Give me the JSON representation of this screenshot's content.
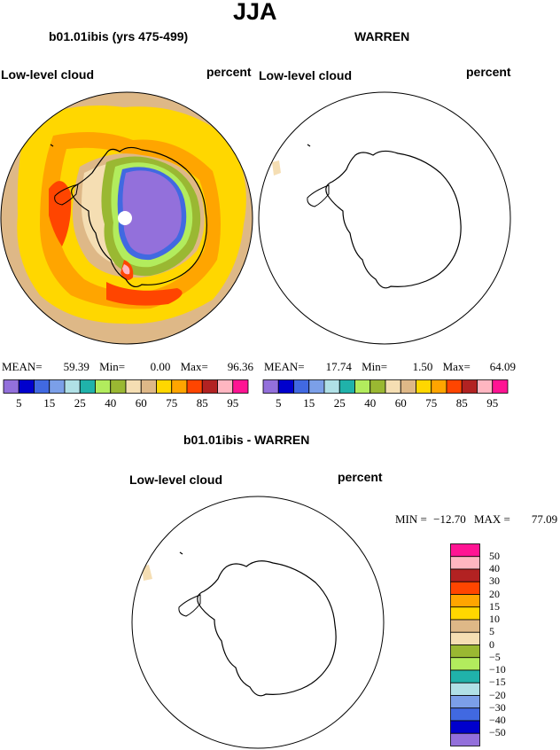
{
  "header": {
    "season": "JJA"
  },
  "panel_model": {
    "case_title": "b01.01ibis (yrs 475-499)",
    "field": "Low-level cloud",
    "units": "percent",
    "stats": {
      "mean_label": "MEAN=",
      "mean": "59.39",
      "min_label": "Min=",
      "min": "0.00",
      "max_label": "Max=",
      "max": "96.36"
    }
  },
  "panel_obs": {
    "case_title": "WARREN",
    "field": "Low-level cloud",
    "units": "percent",
    "stats": {
      "mean_label": "MEAN=",
      "mean": "17.74",
      "min_label": "Min=",
      "min": "1.50",
      "max_label": "Max=",
      "max": "64.09"
    }
  },
  "colorbar_main": {
    "colors": [
      "#9370db",
      "#0000cd",
      "#4169e1",
      "#7b9fe8",
      "#b0e0e6",
      "#20b2aa",
      "#b2ec5d",
      "#9ab832",
      "#f5deb3",
      "#deb887",
      "#ffd700",
      "#ffa500",
      "#ff4500",
      "#b22222",
      "#ffb6c1",
      "#ff1493"
    ],
    "labels": [
      "5",
      "15",
      "25",
      "40",
      "60",
      "75",
      "85",
      "95"
    ]
  },
  "panel_diff": {
    "title": "b01.01ibis - WARREN",
    "field": "Low-level cloud",
    "units": "percent",
    "stats": {
      "min_label": "MIN =",
      "min": "−12.70",
      "max_label": "MAX =",
      "max": "77.09"
    }
  },
  "colorbar_diff": {
    "colors": [
      "#ff1493",
      "#ffb6c1",
      "#b22222",
      "#ff4500",
      "#ffa500",
      "#ffd700",
      "#deb887",
      "#f5deb3",
      "#9ab832",
      "#b2ec5d",
      "#20b2aa",
      "#b0e0e6",
      "#7b9fe8",
      "#4169e1",
      "#0000cd",
      "#9370db"
    ],
    "labels": [
      "50",
      "40",
      "30",
      "20",
      "15",
      "10",
      "5",
      "0",
      "−5",
      "−10",
      "−15",
      "−20",
      "−30",
      "−40",
      "−50"
    ]
  }
}
